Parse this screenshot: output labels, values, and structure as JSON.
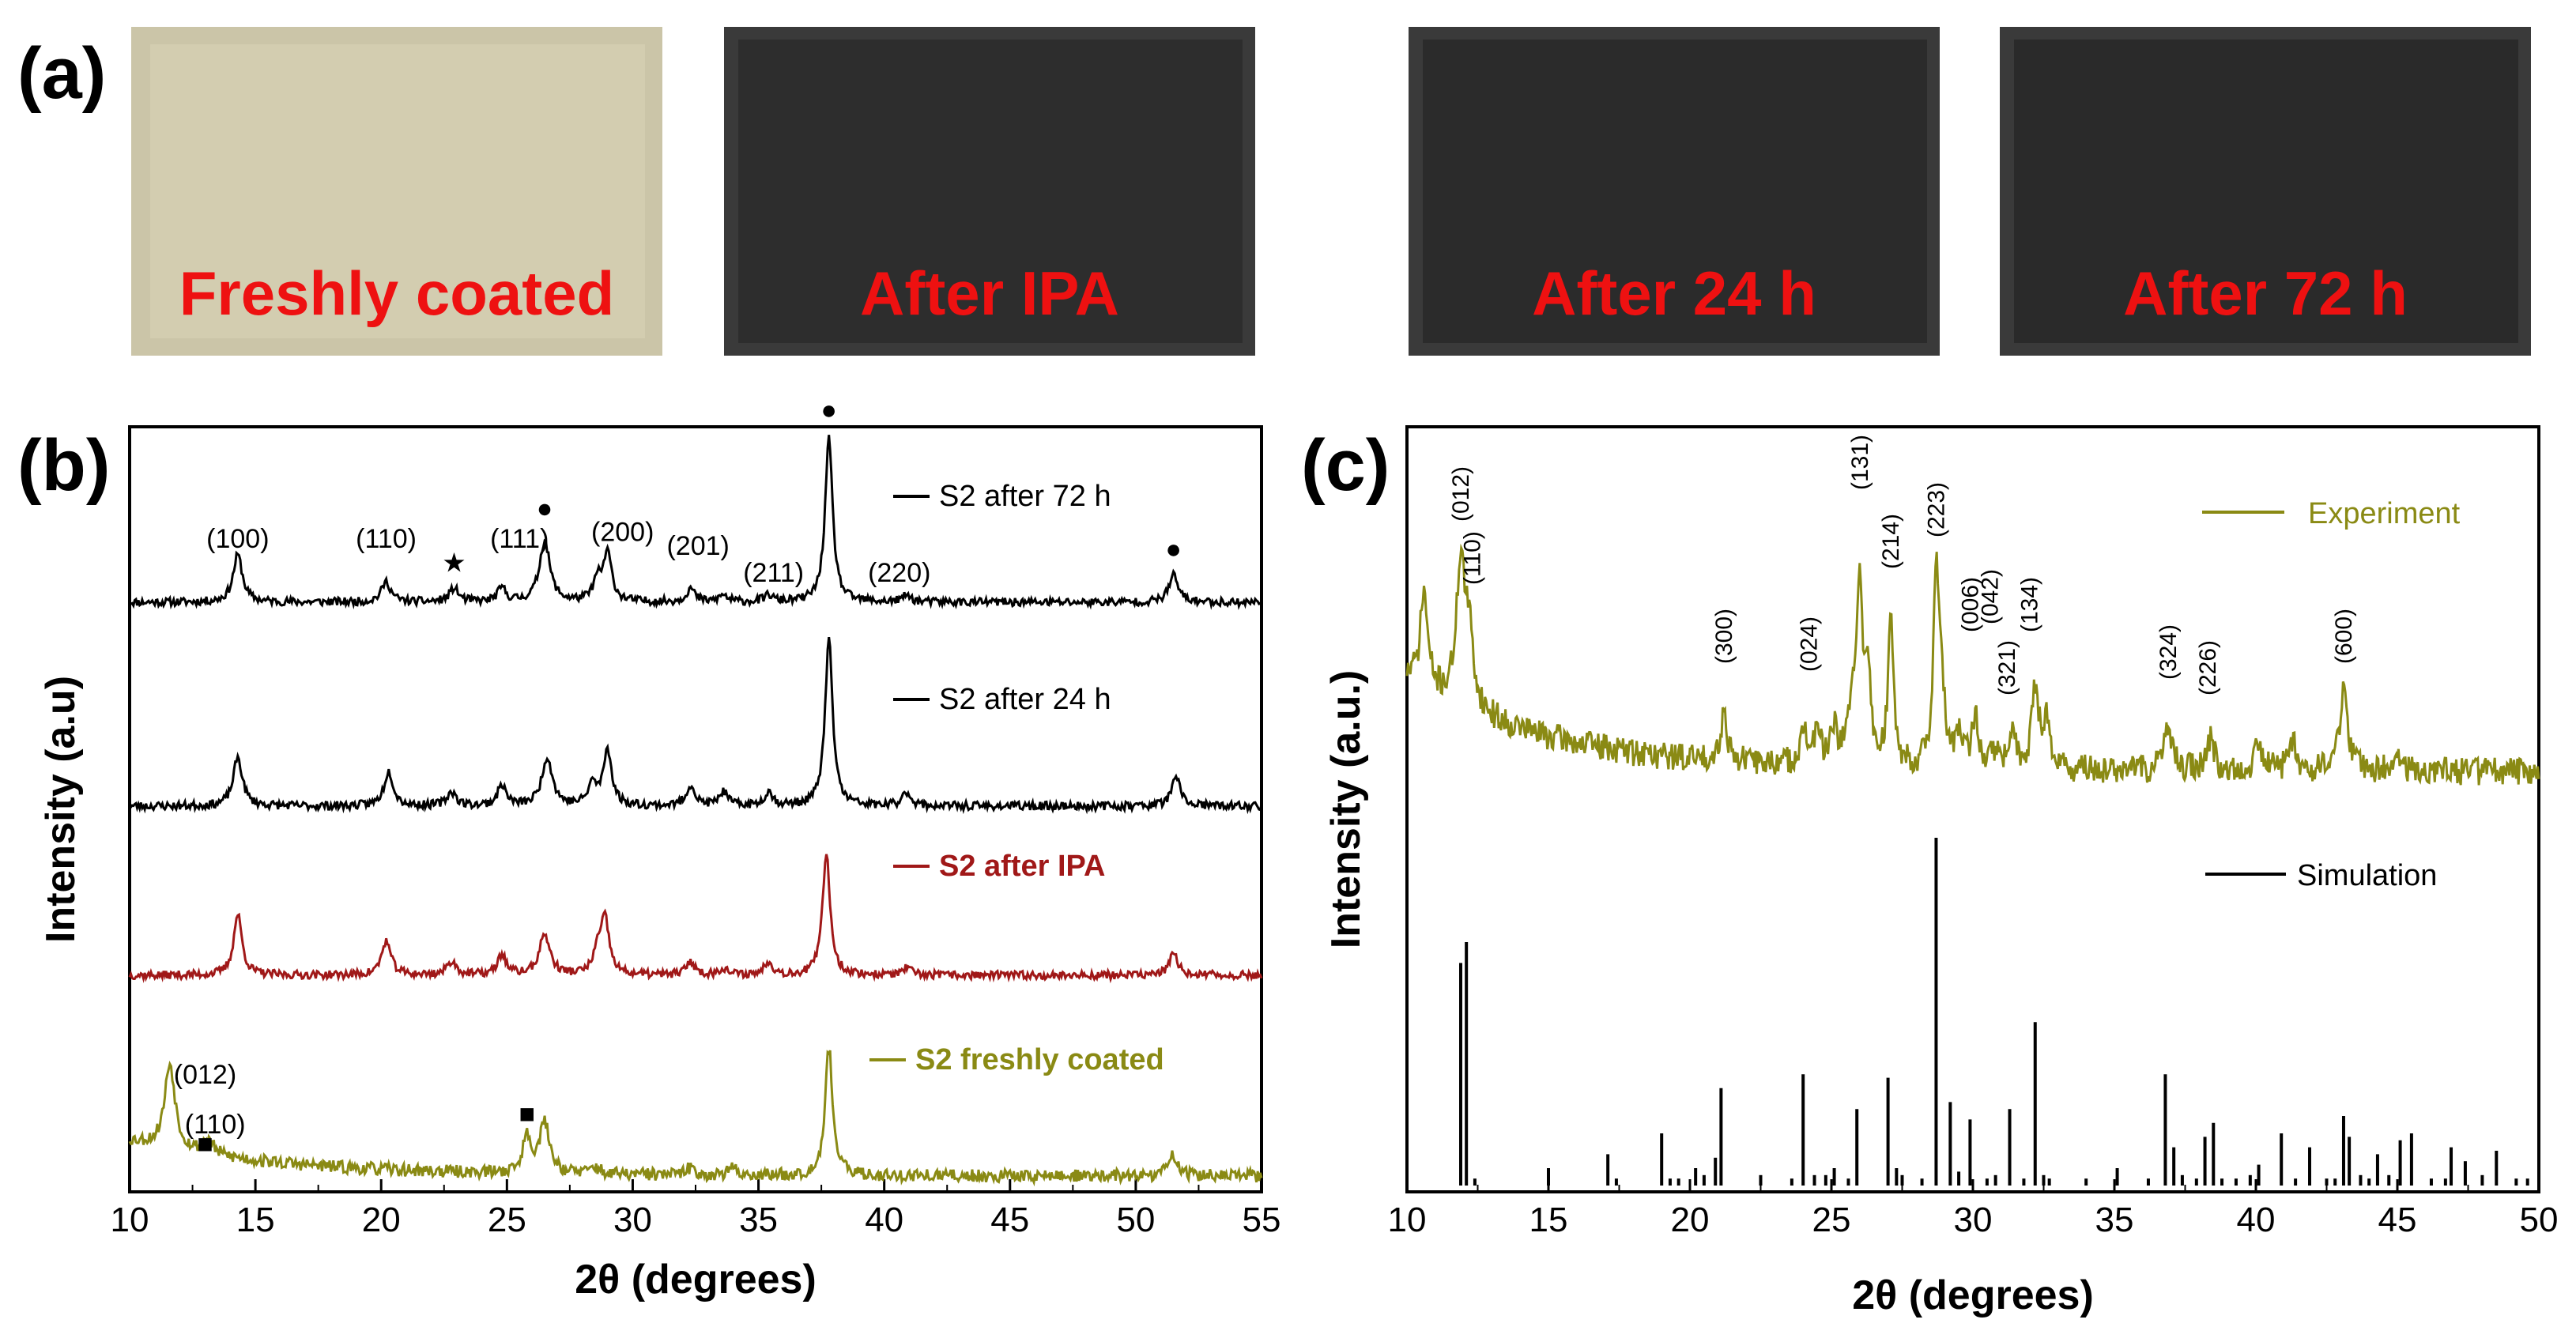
{
  "panel_labels": {
    "a": "(a)",
    "b": "(b)",
    "c": "(c)"
  },
  "photos": [
    {
      "label": "Freshly coated",
      "tone": "#cbc5a8"
    },
    {
      "label": "After IPA",
      "tone": "#2d2d2d"
    },
    {
      "label": "After 24 h",
      "tone": "#2b2b2b"
    },
    {
      "label": "After 72 h",
      "tone": "#2a2a2a"
    }
  ],
  "chart_data": [
    {
      "type": "line",
      "panel": "(b)",
      "xlabel": "2θ (degrees)",
      "ylabel": "Intensity (a.u)",
      "xlim": [
        10,
        55
      ],
      "xticks": [
        10,
        15,
        20,
        25,
        30,
        35,
        40,
        45,
        50,
        55
      ],
      "series": [
        {
          "name": "S2 after 72 h",
          "color": "#000000",
          "baseline": 0.0,
          "noise": 0.6,
          "bg_amp": 0,
          "bg_decay": 1,
          "seed": 11,
          "peaks": [
            [
              14.3,
              7,
              0.22
            ],
            [
              20.2,
              3,
              0.22
            ],
            [
              22.9,
              2,
              0.22
            ],
            [
              24.8,
              2,
              0.2
            ],
            [
              26.5,
              9,
              0.25
            ],
            [
              28.6,
              3,
              0.2
            ],
            [
              29.0,
              7,
              0.2
            ],
            [
              32.3,
              2,
              0.2
            ],
            [
              33.6,
              1,
              0.2
            ],
            [
              35.4,
              1,
              0.2
            ],
            [
              37.8,
              24,
              0.18
            ],
            [
              40.9,
              1,
              0.2
            ],
            [
              51.5,
              4,
              0.22
            ]
          ]
        },
        {
          "name": "S2 after 24 h",
          "color": "#000000",
          "baseline": 0.0,
          "noise": 0.6,
          "bg_amp": 0,
          "bg_decay": 1,
          "seed": 23,
          "peaks": [
            [
              14.3,
              7,
              0.22
            ],
            [
              20.3,
              5,
              0.22
            ],
            [
              22.8,
              2,
              0.22
            ],
            [
              24.8,
              3,
              0.2
            ],
            [
              26.6,
              7,
              0.25
            ],
            [
              28.4,
              3,
              0.2
            ],
            [
              29.0,
              8,
              0.2
            ],
            [
              32.3,
              3,
              0.2
            ],
            [
              33.6,
              2,
              0.2
            ],
            [
              35.4,
              2,
              0.2
            ],
            [
              37.8,
              24,
              0.18
            ],
            [
              40.9,
              2,
              0.2
            ],
            [
              51.6,
              4,
              0.22
            ]
          ]
        },
        {
          "name": "S2 after IPA",
          "color": "#a01818",
          "baseline": 0.0,
          "noise": 0.6,
          "bg_amp": 0,
          "bg_decay": 1,
          "seed": 37,
          "peaks": [
            [
              14.3,
              9,
              0.2
            ],
            [
              20.2,
              5,
              0.22
            ],
            [
              22.8,
              2,
              0.22
            ],
            [
              24.8,
              3,
              0.2
            ],
            [
              26.5,
              6,
              0.25
            ],
            [
              28.6,
              3,
              0.2
            ],
            [
              28.9,
              8,
              0.2
            ],
            [
              32.3,
              2,
              0.2
            ],
            [
              33.6,
              1,
              0.2
            ],
            [
              35.4,
              2,
              0.2
            ],
            [
              37.7,
              18,
              0.18
            ],
            [
              40.9,
              1,
              0.2
            ],
            [
              51.5,
              3,
              0.22
            ]
          ]
        },
        {
          "name": "S2 freshly coated",
          "color": "#8a8a14",
          "baseline": 0.0,
          "noise": 0.9,
          "bg_amp": 5,
          "bg_decay": 6,
          "seed": 53,
          "peaks": [
            [
              11.6,
              12,
              0.25
            ],
            [
              13.1,
              2,
              0.25
            ],
            [
              25.8,
              5,
              0.2
            ],
            [
              26.5,
              7,
              0.25
            ],
            [
              28.5,
              1,
              0.2
            ],
            [
              32.3,
              1,
              0.2
            ],
            [
              34.0,
              1,
              0.2
            ],
            [
              37.8,
              18,
              0.18
            ],
            [
              51.5,
              3,
              0.22
            ]
          ]
        }
      ],
      "annotations": [
        {
          "text": "(100)",
          "x": 14.3,
          "track": 0,
          "up": 8
        },
        {
          "text": "(110)",
          "x": 20.2,
          "track": 0,
          "up": 8
        },
        {
          "text": "(111)",
          "x": 25.5,
          "track": 0,
          "up": 8
        },
        {
          "text": "(200)",
          "x": 29.6,
          "track": 0,
          "up": 9
        },
        {
          "text": "(201)",
          "x": 32.6,
          "track": 0,
          "up": 7
        },
        {
          "text": "(211)",
          "x": 35.6,
          "track": 0,
          "up": 3
        },
        {
          "text": "(220)",
          "x": 40.6,
          "track": 0,
          "up": 3
        },
        {
          "text": "(012)",
          "x": 13.0,
          "track": 3,
          "up": 13
        },
        {
          "text": "(110)",
          "x": 13.4,
          "track": 3,
          "up": 6
        }
      ],
      "markers": [
        {
          "symbol": "★",
          "x": 22.9,
          "track": 0,
          "up": 4.5
        },
        {
          "symbol": "●",
          "x": 26.5,
          "track": 0,
          "up": 12.5
        },
        {
          "symbol": "●",
          "x": 37.8,
          "track": 0,
          "up": 27
        },
        {
          "symbol": "●",
          "x": 51.5,
          "track": 0,
          "up": 6.5
        },
        {
          "symbol": "■",
          "x": 13.0,
          "track": 3,
          "up": 3.3
        },
        {
          "symbol": "■",
          "x": 25.8,
          "track": 3,
          "up": 7.5
        }
      ]
    },
    {
      "type": "line",
      "panel": "(c)",
      "xlabel": "2θ (degrees)",
      "ylabel": "Intensity (a.u.)",
      "xlim": [
        10,
        50
      ],
      "xticks": [
        10,
        15,
        20,
        25,
        30,
        35,
        40,
        45,
        50
      ],
      "experiment": {
        "name": "Experiment",
        "color": "#8a8a14",
        "noise": 0.9,
        "bg_amp": 6,
        "bg_decay": 5,
        "seed": 71,
        "peaks": [
          [
            10.6,
            6,
            0.15
          ],
          [
            11.9,
            9,
            0.18
          ],
          [
            12.2,
            4,
            0.18
          ],
          [
            21.2,
            3,
            0.15
          ],
          [
            24.0,
            2,
            0.15
          ],
          [
            24.5,
            2,
            0.15
          ],
          [
            25.1,
            2,
            0.15
          ],
          [
            25.7,
            3,
            0.15
          ],
          [
            26.0,
            12,
            0.12
          ],
          [
            26.3,
            5,
            0.12
          ],
          [
            27.1,
            9,
            0.12
          ],
          [
            28.7,
            12,
            0.12
          ],
          [
            28.9,
            4,
            0.12
          ],
          [
            29.5,
            2,
            0.15
          ],
          [
            30.1,
            3,
            0.15
          ],
          [
            30.8,
            1,
            0.15
          ],
          [
            31.4,
            2,
            0.15
          ],
          [
            32.2,
            5,
            0.15
          ],
          [
            32.6,
            3,
            0.15
          ],
          [
            36.9,
            3,
            0.15
          ],
          [
            38.4,
            2,
            0.15
          ],
          [
            40.1,
            2,
            0.15
          ],
          [
            41.3,
            2,
            0.15
          ],
          [
            43.1,
            5,
            0.18
          ],
          [
            45.0,
            1,
            0.15
          ]
        ]
      },
      "simulation": {
        "name": "Simulation",
        "color": "#000000",
        "sticks": [
          [
            11.9,
            64
          ],
          [
            12.1,
            70
          ],
          [
            12.4,
            2
          ],
          [
            15.0,
            5
          ],
          [
            17.1,
            9
          ],
          [
            17.4,
            2
          ],
          [
            19.0,
            15
          ],
          [
            19.3,
            2
          ],
          [
            19.6,
            2
          ],
          [
            20.2,
            5
          ],
          [
            20.5,
            3
          ],
          [
            20.9,
            8
          ],
          [
            21.1,
            28
          ],
          [
            22.5,
            3
          ],
          [
            23.6,
            2
          ],
          [
            24.0,
            32
          ],
          [
            24.4,
            3
          ],
          [
            24.8,
            3
          ],
          [
            25.1,
            5
          ],
          [
            25.6,
            2
          ],
          [
            25.9,
            22
          ],
          [
            27.0,
            31
          ],
          [
            27.3,
            5
          ],
          [
            27.5,
            3
          ],
          [
            28.2,
            2
          ],
          [
            28.7,
            100
          ],
          [
            29.2,
            24
          ],
          [
            29.5,
            4
          ],
          [
            29.9,
            19
          ],
          [
            30.5,
            2
          ],
          [
            30.8,
            3
          ],
          [
            31.3,
            22
          ],
          [
            31.8,
            2
          ],
          [
            32.2,
            47
          ],
          [
            32.5,
            3
          ],
          [
            32.7,
            2
          ],
          [
            34.0,
            2
          ],
          [
            35.1,
            5
          ],
          [
            36.2,
            2
          ],
          [
            36.8,
            32
          ],
          [
            37.1,
            11
          ],
          [
            37.4,
            3
          ],
          [
            37.9,
            2
          ],
          [
            38.2,
            14
          ],
          [
            38.5,
            18
          ],
          [
            38.8,
            2
          ],
          [
            39.3,
            2
          ],
          [
            39.8,
            3
          ],
          [
            40.1,
            6
          ],
          [
            40.9,
            15
          ],
          [
            41.4,
            2
          ],
          [
            41.9,
            11
          ],
          [
            42.5,
            2
          ],
          [
            42.8,
            2
          ],
          [
            43.1,
            20
          ],
          [
            43.3,
            14
          ],
          [
            43.7,
            3
          ],
          [
            44.0,
            2
          ],
          [
            44.3,
            9
          ],
          [
            44.7,
            3
          ],
          [
            45.1,
            13
          ],
          [
            45.5,
            15
          ],
          [
            46.2,
            2
          ],
          [
            46.7,
            2
          ],
          [
            46.9,
            11
          ],
          [
            47.4,
            7
          ],
          [
            48.0,
            3
          ],
          [
            48.5,
            10
          ],
          [
            49.2,
            2
          ],
          [
            49.6,
            2
          ]
        ]
      },
      "annotations": [
        "(012)",
        "(110)",
        "(300)",
        "(024)",
        "(131)",
        "(214)",
        "(223)",
        "(006)",
        "(042)",
        "(321)",
        "(134)",
        "(324)",
        "(226)",
        "(600)"
      ]
    }
  ]
}
